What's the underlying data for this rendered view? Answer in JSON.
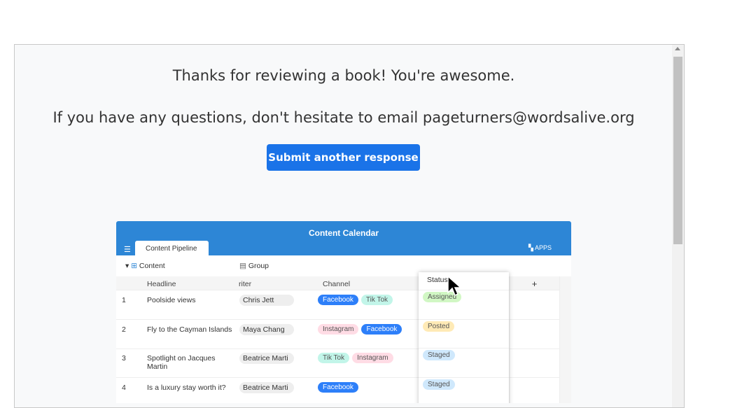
{
  "confirmation": {
    "line1": "Thanks for reviewing a book! You're awesome.",
    "line2": "If you have any questions, don't hesitate to email pageturners@wordsalive.org",
    "submit_label": "Submit another response"
  },
  "screenshot": {
    "title": "Content Calendar",
    "tab": "Content Pipeline",
    "apps": "APPS",
    "table_name": "Content",
    "group": "Group",
    "columns": {
      "headline": "Headline",
      "writer": "riter",
      "channel": "Channel",
      "status": "Status",
      "add": "+"
    },
    "rows": [
      {
        "num": "1",
        "headline": "Poolside views",
        "writer": "Chris Jett",
        "channels": [
          "Facebook",
          "Tik Tok"
        ],
        "status": "Assigned"
      },
      {
        "num": "2",
        "headline": "Fly to the Cayman Islands",
        "writer": "Maya Chang",
        "channels": [
          "Instagram",
          "Facebook"
        ],
        "status": "Posted"
      },
      {
        "num": "3",
        "headline": "Spotlight on Jacques Martin",
        "writer": "Beatrice Marti",
        "channels": [
          "Tik Tok",
          "Instagram"
        ],
        "status": "Staged"
      },
      {
        "num": "4",
        "headline": "Is a luxury stay worth it?",
        "writer": "Beatrice Marti",
        "channels": [
          "Facebook"
        ],
        "status": "Staged"
      }
    ],
    "colors": {
      "Facebook": "#2d7ff9",
      "Tik Tok": "#c2f5e9",
      "Instagram": "#ffdce5",
      "Assigned": "#d1f7c4",
      "Posted": "#ffeab6",
      "Staged": "#cfe8fc"
    }
  }
}
